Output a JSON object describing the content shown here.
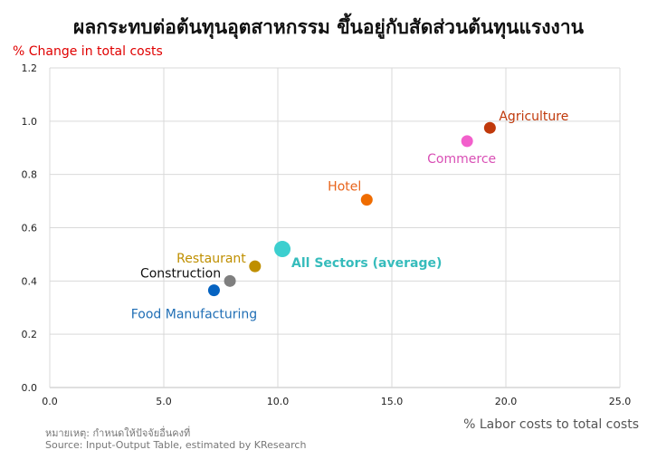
{
  "chart_data": {
    "type": "scatter",
    "title": "ผลกระทบต่อต้นทุนอุตสาหกรรม ขึ้นอยู่กับสัดส่วนต้นทุนแรงงาน",
    "ylabel": "% Change in total costs",
    "xlabel": "% Labor costs to total costs",
    "xlim": [
      0,
      25
    ],
    "ylim": [
      0,
      1.2
    ],
    "x_ticks": [
      "0.0",
      "5.0",
      "10.0",
      "15.0",
      "20.0",
      "25.0"
    ],
    "y_ticks": [
      "0.0",
      "0.2",
      "0.4",
      "0.6",
      "0.8",
      "1.0",
      "1.2"
    ],
    "grid": true,
    "points": [
      {
        "label": "Agriculture",
        "x": 19.3,
        "y": 0.975,
        "color": "#c0390b",
        "label_pos": "upper-right"
      },
      {
        "label": "Commerce",
        "x": 18.3,
        "y": 0.925,
        "color": "#f25fcb",
        "label_pos": "below-left"
      },
      {
        "label": "Hotel",
        "x": 13.9,
        "y": 0.705,
        "color": "#ef6c00",
        "label_pos": "above-left"
      },
      {
        "label": "All Sectors (average)",
        "x": 10.2,
        "y": 0.52,
        "color": "#3ccfcf",
        "label_pos": "lower-right",
        "bold": true,
        "large": true
      },
      {
        "label": "Restaurant",
        "x": 9.0,
        "y": 0.455,
        "color": "#bf8f00",
        "label_pos": "upper-left"
      },
      {
        "label": "Construction",
        "x": 7.9,
        "y": 0.4,
        "color": "#7f7f7f",
        "label_pos": "upper-left"
      },
      {
        "label": "Food Manufacturing",
        "x": 7.2,
        "y": 0.365,
        "color": "#0563c1",
        "label_pos": "below"
      }
    ]
  },
  "colors": {
    "ylabel": "#e00000",
    "label_agriculture": "#c0390b",
    "label_commerce": "#d94fb5",
    "label_hotel": "#e8631a",
    "label_all": "#36bcbc",
    "label_restaurant": "#bf8f00",
    "label_construction": "#111111",
    "label_food": "#1f6eb5"
  },
  "footer": {
    "note": "หมายเหตุ: กำหนดให้ปัจจัยอื่นคงที่",
    "source": "Source: Input-Output Table, estimated by KResearch"
  }
}
